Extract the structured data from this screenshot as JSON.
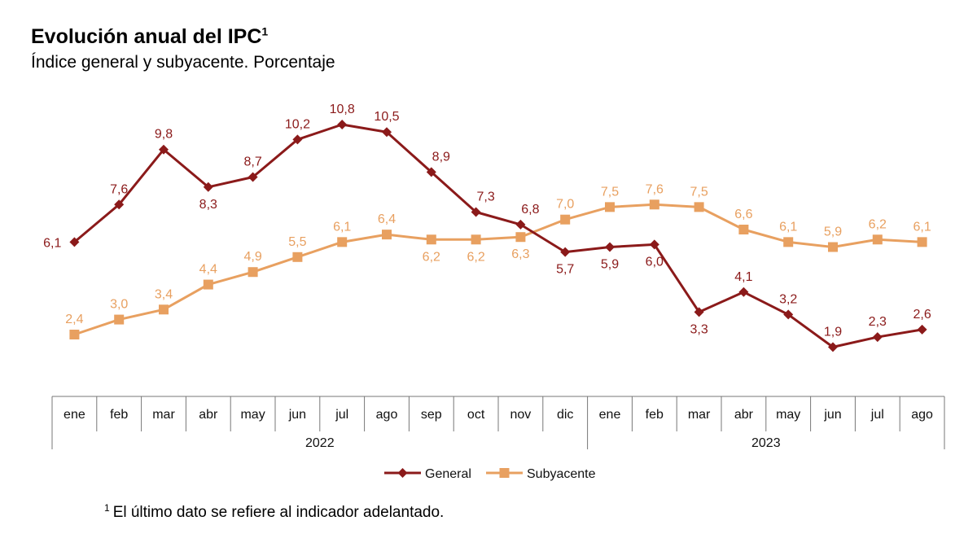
{
  "header": {
    "title": "Evolución anual del IPC",
    "title_sup": "1",
    "subtitle": "Índice general y subyacente. Porcentaje"
  },
  "footnote": {
    "mark": "1",
    "text": "El último dato se refiere al indicador adelantado."
  },
  "colors": {
    "general": "#8B1A1A",
    "subyacente": "#E8A060"
  },
  "chart_data": {
    "type": "line",
    "title": "Evolución anual del IPC",
    "subtitle": "Índice general y subyacente. Porcentaje",
    "categories": [
      "ene",
      "feb",
      "mar",
      "abr",
      "may",
      "jun",
      "jul",
      "ago",
      "sep",
      "oct",
      "nov",
      "dic",
      "ene",
      "feb",
      "mar",
      "abr",
      "may",
      "jun",
      "jul",
      "ago"
    ],
    "year_groups": [
      {
        "label": "2022",
        "count": 12
      },
      {
        "label": "2023",
        "count": 8
      }
    ],
    "series": [
      {
        "name": "General",
        "marker": "diamond",
        "labels": [
          "6,1",
          "7,6",
          "9,8",
          "8,3",
          "8,7",
          "10,2",
          "10,8",
          "10,5",
          "8,9",
          "7,3",
          "6,8",
          "5,7",
          "5,9",
          "6,0",
          "3,3",
          "4,1",
          "3,2",
          "1,9",
          "2,3",
          "2,6"
        ],
        "values": [
          6.1,
          7.6,
          9.8,
          8.3,
          8.7,
          10.2,
          10.8,
          10.5,
          8.9,
          7.3,
          6.8,
          5.7,
          5.9,
          6.0,
          3.3,
          4.1,
          3.2,
          1.9,
          2.3,
          2.6
        ]
      },
      {
        "name": "Subyacente",
        "marker": "square",
        "labels": [
          "2,4",
          "3,0",
          "3,4",
          "4,4",
          "4,9",
          "5,5",
          "6,1",
          "6,4",
          "6,2",
          "6,2",
          "6,3",
          "7,0",
          "7,5",
          "7,6",
          "7,5",
          "6,6",
          "6,1",
          "5,9",
          "6,2",
          "6,1"
        ],
        "values": [
          2.4,
          3.0,
          3.4,
          4.4,
          4.9,
          5.5,
          6.1,
          6.4,
          6.2,
          6.2,
          6.3,
          7.0,
          7.5,
          7.6,
          7.5,
          6.6,
          6.1,
          5.9,
          6.2,
          6.1
        ]
      }
    ],
    "legend": [
      "General",
      "Subyacente"
    ],
    "legend_position": "bottom",
    "ylim": [
      0,
      12
    ],
    "grid": false
  }
}
